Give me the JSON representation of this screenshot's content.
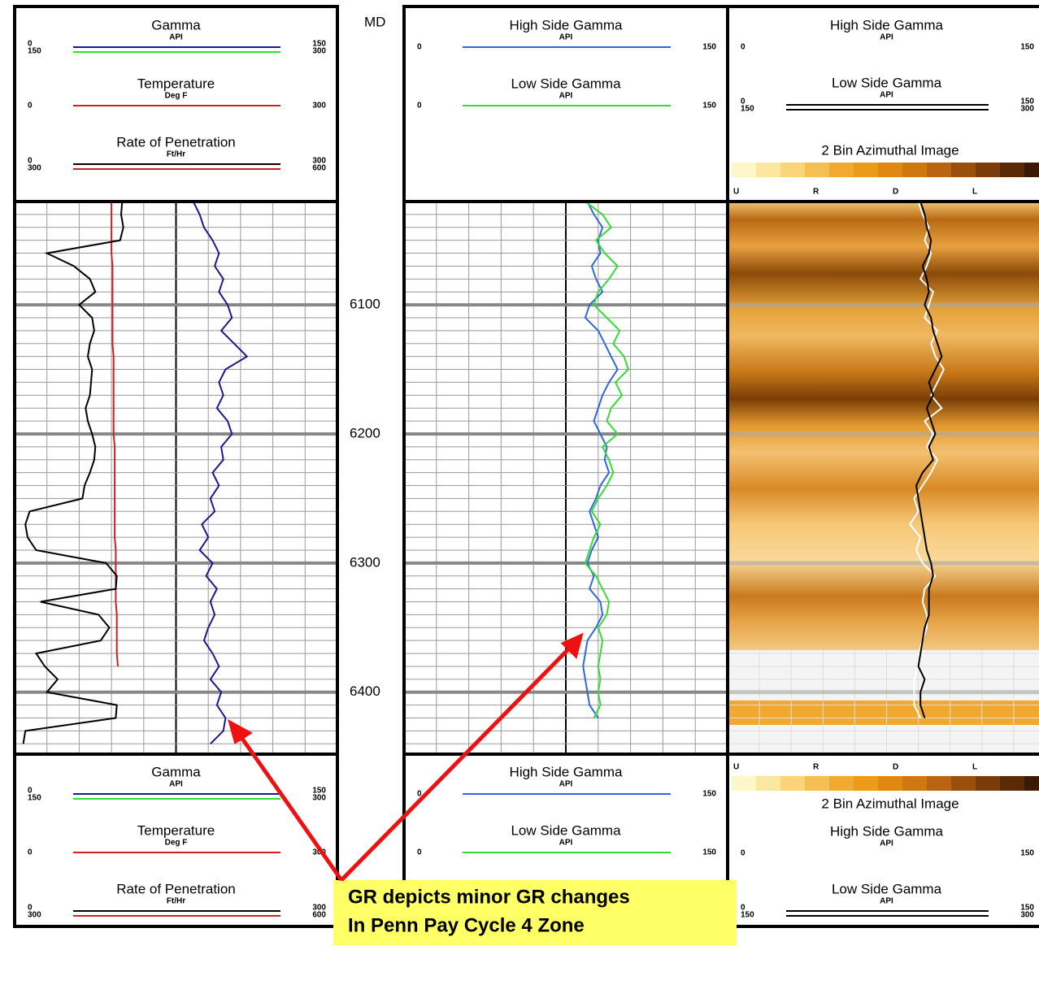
{
  "md_label": "MD",
  "depth_lim": [
    6020,
    6448
  ],
  "depth_ticks": [
    6100,
    6200,
    6300,
    6400
  ],
  "depths": [
    6020,
    6030,
    6040,
    6050,
    6060,
    6070,
    6080,
    6090,
    6100,
    6110,
    6120,
    6130,
    6140,
    6150,
    6160,
    6170,
    6180,
    6190,
    6200,
    6210,
    6220,
    6230,
    6240,
    6250,
    6260,
    6270,
    6280,
    6290,
    6300,
    6310,
    6320,
    6330,
    6340,
    6350,
    6360,
    6370,
    6380,
    6390,
    6400,
    6410,
    6420,
    6430,
    6440
  ],
  "tracks": [
    {
      "curves": [
        {
          "name": "Gamma",
          "unit": "API",
          "scales": [
            [
              0,
              150
            ],
            [
              150,
              300
            ]
          ],
          "colors": [
            "#1a1a8c",
            "#33dd33"
          ],
          "values": [
            83,
            86,
            88,
            92,
            95,
            93,
            97,
            95,
            99,
            101,
            96,
            102,
            108,
            98,
            95,
            97,
            94,
            99,
            101,
            96,
            97,
            92,
            95,
            91,
            93,
            87,
            90,
            86,
            92,
            89,
            94,
            91,
            93,
            90,
            88,
            92,
            95,
            91,
            96,
            94,
            98,
            97,
            91
          ]
        },
        {
          "name": "Temperature",
          "unit": "Deg F",
          "scales": [
            [
              0,
              300
            ]
          ],
          "colors": [
            "#cc2222"
          ],
          "values": [
            90,
            90,
            90,
            90,
            90,
            91,
            91,
            91,
            91,
            91,
            91,
            91,
            92,
            92,
            92,
            92,
            92,
            92,
            92,
            93,
            93,
            93,
            93,
            93,
            93,
            93,
            93,
            94,
            94,
            94,
            94,
            94,
            95,
            95,
            95,
            95,
            96,
            null,
            null,
            null,
            null,
            null,
            null
          ]
        },
        {
          "name": "Rate of Penetration",
          "unit": "Ft/Hr",
          "scales": [
            [
              0,
              300
            ],
            [
              300,
              600
            ]
          ],
          "colors": [
            "#000000",
            "#cc2222"
          ],
          "values": [
            100,
            99,
            101,
            98,
            30,
            55,
            70,
            75,
            60,
            72,
            74,
            70,
            68,
            72,
            71,
            70,
            66,
            68,
            72,
            75,
            74,
            70,
            65,
            63,
            14,
            10,
            12,
            20,
            85,
            95,
            94,
            24,
            78,
            88,
            80,
            20,
            28,
            40,
            30,
            95,
            94,
            10,
            8
          ]
        }
      ]
    },
    {
      "curves": [
        {
          "name": "High Side Gamma",
          "unit": "API",
          "scales": [
            [
              0,
              150
            ]
          ],
          "colors": [
            "#3366dd"
          ],
          "values": [
            85,
            88,
            92,
            90,
            91,
            87,
            89,
            92,
            86,
            84,
            90,
            93,
            96,
            99,
            95,
            92,
            90,
            88,
            91,
            94,
            93,
            95,
            91,
            89,
            86,
            88,
            90,
            87,
            85,
            88,
            86,
            91,
            92,
            89,
            85,
            84,
            83,
            84,
            85,
            86,
            90,
            null,
            null
          ]
        },
        {
          "name": "Low Side Gamma",
          "unit": "API",
          "scales": [
            [
              0,
              150
            ]
          ],
          "colors": [
            "#33dd33"
          ],
          "values": [
            84,
            92,
            96,
            89,
            93,
            99,
            95,
            90,
            88,
            94,
            100,
            97,
            102,
            104,
            98,
            101,
            96,
            94,
            99,
            92,
            95,
            97,
            94,
            90,
            87,
            91,
            88,
            86,
            84,
            89,
            92,
            95,
            94,
            90,
            92,
            91,
            90,
            91,
            90,
            91,
            88,
            null,
            null
          ]
        }
      ]
    },
    {
      "image_title": "2 Bin Azimuthal Image",
      "image_labels": [
        "U",
        "R",
        "D",
        "L"
      ],
      "curves": [
        {
          "name": "High Side Gamma",
          "unit": "API",
          "scales": [
            [
              0,
              150
            ]
          ],
          "colors": [
            "#ffffff"
          ],
          "values": [
            90,
            92,
            95,
            93,
            96,
            94,
            91,
            97,
            95,
            93,
            99,
            96,
            98,
            102,
            99,
            96,
            101,
            93,
            97,
            94,
            99,
            96,
            92,
            88,
            90,
            86,
            91,
            89,
            92,
            98,
            93,
            92,
            94,
            94,
            92,
            90,
            90,
            88,
            88,
            88,
            91,
            null,
            null
          ]
        },
        {
          "name": "Low Side Gamma",
          "unit": "API",
          "scales": [
            [
              0,
              150
            ],
            [
              150,
              300
            ]
          ],
          "colors": [
            "#000000",
            "#000000"
          ],
          "values": [
            91,
            93,
            94,
            96,
            95,
            92,
            94,
            95,
            93,
            96,
            97,
            99,
            101,
            98,
            95,
            97,
            94,
            96,
            98,
            95,
            97,
            92,
            89,
            90,
            91,
            92,
            93,
            94,
            96,
            97,
            95,
            95,
            95,
            93,
            92,
            91,
            90,
            93,
            91,
            91,
            93,
            null,
            null
          ]
        }
      ]
    }
  ],
  "annotation": [
    "GR depicts minor GR changes",
    "In Penn Pay Cycle 4 Zone"
  ]
}
